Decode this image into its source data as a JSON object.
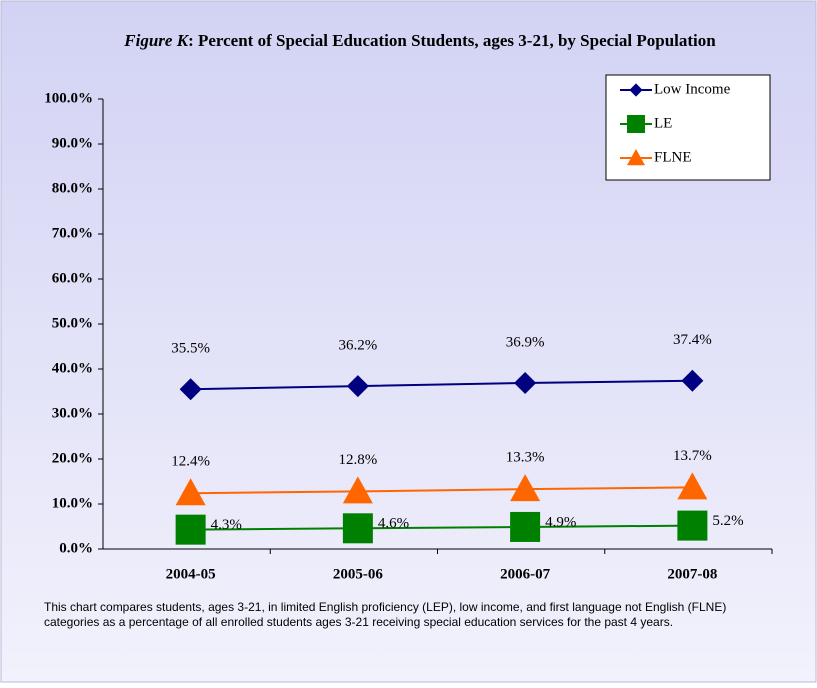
{
  "chart_data": {
    "type": "line",
    "title": {
      "figure": "Figure K",
      "text": ": Percent of Special Education Students, ages 3-21, by Special Population"
    },
    "categories": [
      "2004-05",
      "2005-06",
      "2006-07",
      "2007-08"
    ],
    "series": [
      {
        "name": "Low Income",
        "color": "#000080",
        "marker": "diamond",
        "values": [
          35.5,
          36.2,
          36.9,
          37.4
        ],
        "value_labels": [
          "35.5%",
          "36.2%",
          "36.9%",
          "37.4%"
        ]
      },
      {
        "name": "LE",
        "color": "#008000",
        "marker": "square",
        "values": [
          4.3,
          4.6,
          4.9,
          5.2
        ],
        "value_labels": [
          "4.3%",
          "4.6%",
          "4.9%",
          "5.2%"
        ]
      },
      {
        "name": "FLNE",
        "color": "#ff6600",
        "marker": "triangle",
        "values": [
          12.4,
          12.8,
          13.3,
          13.7
        ],
        "value_labels": [
          "12.4%",
          "12.8%",
          "13.3%",
          "13.7%"
        ]
      }
    ],
    "ylim": [
      0,
      100
    ],
    "yticks": [
      {
        "value": 0,
        "label": "0.0%"
      },
      {
        "value": 10,
        "label": "10.0%"
      },
      {
        "value": 20,
        "label": "20.0%"
      },
      {
        "value": 30,
        "label": "30.0%"
      },
      {
        "value": 40,
        "label": "40.0%"
      },
      {
        "value": 50,
        "label": "50.0%"
      },
      {
        "value": 60,
        "label": "60.0%"
      },
      {
        "value": 70,
        "label": "70.0%"
      },
      {
        "value": 80,
        "label": "80.0%"
      },
      {
        "value": 90,
        "label": "90.0%"
      },
      {
        "value": 100,
        "label": "100.0%"
      }
    ],
    "legend": "top-right",
    "note": "This chart compares students, ages 3-21, in limited English proficiency (LEP), low income, and first language not English (FLNE) categories as a percentage of all enrolled students ages 3-21 receiving special education services for the past 4 years."
  }
}
